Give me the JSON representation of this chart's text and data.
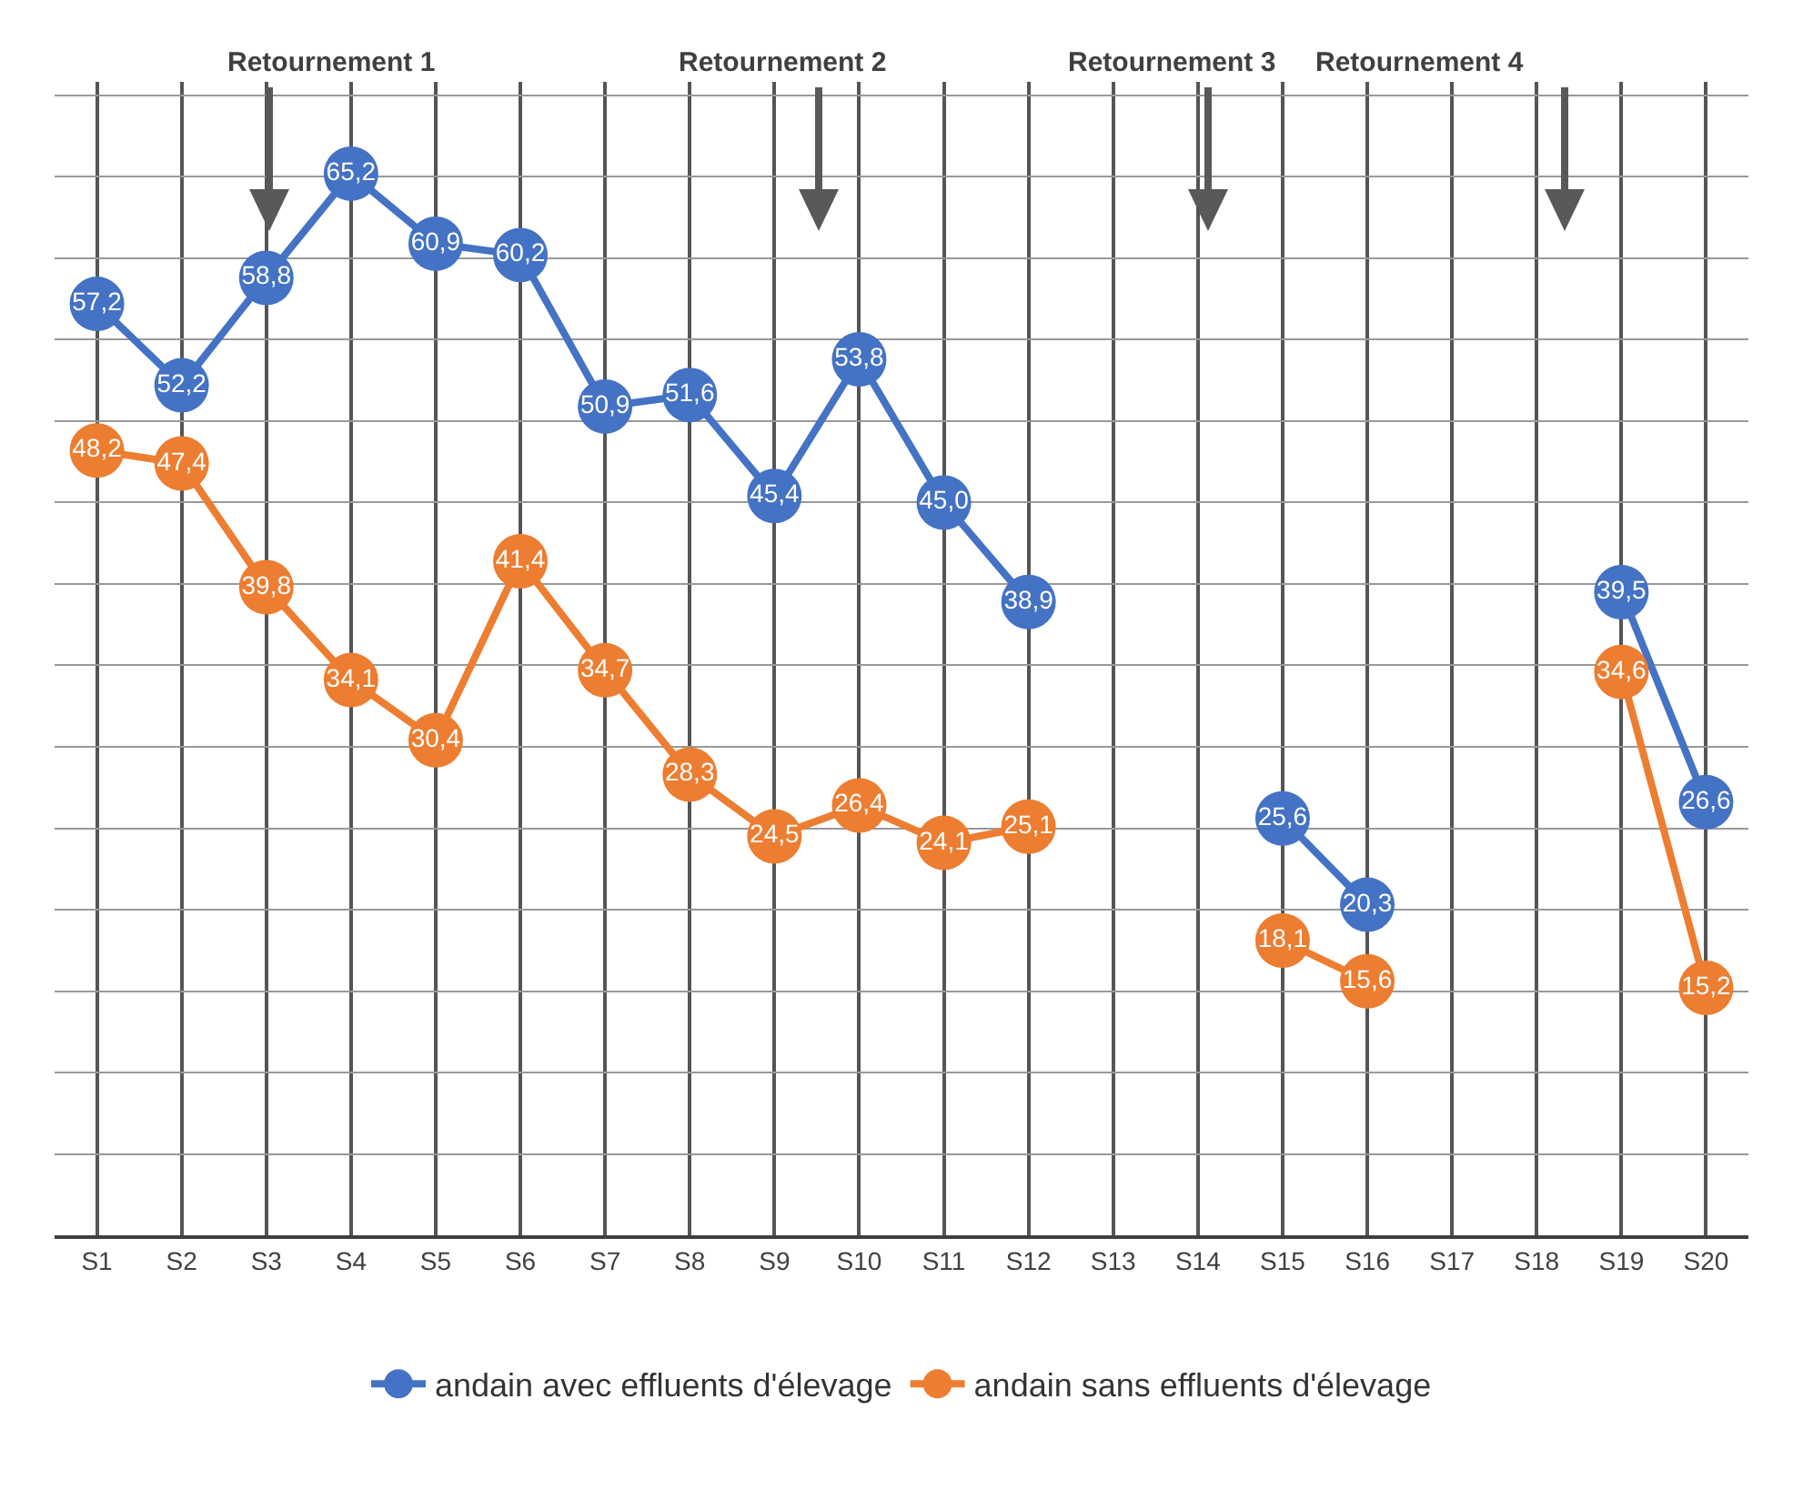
{
  "chart_data": {
    "type": "line",
    "categories": [
      "S1",
      "S2",
      "S3",
      "S4",
      "S5",
      "S6",
      "S7",
      "S8",
      "S9",
      "S10",
      "S11",
      "S12",
      "S13",
      "S14",
      "S15",
      "S16",
      "S17",
      "S18",
      "S19",
      "S20"
    ],
    "series": [
      {
        "name": "andain avec effluents d'élevage",
        "color": "#4472c4",
        "values": [
          57.2,
          52.2,
          58.8,
          65.2,
          60.9,
          60.2,
          50.9,
          51.6,
          45.4,
          53.8,
          45.0,
          38.9,
          null,
          null,
          25.6,
          20.3,
          null,
          null,
          39.5,
          26.6
        ],
        "value_labels": [
          "57,2",
          "52,2",
          "58,8",
          "65,2",
          "60,9",
          "60,2",
          "50,9",
          "51,6",
          "45,4",
          "53,8",
          "45,0",
          "38,9",
          null,
          null,
          "25,6",
          "20,3",
          null,
          null,
          "39,5",
          "26,6"
        ]
      },
      {
        "name": "andain sans effluents d'élevage",
        "color": "#ed7d31",
        "values": [
          48.2,
          47.4,
          39.8,
          34.1,
          30.4,
          41.4,
          34.7,
          28.3,
          24.5,
          26.4,
          24.1,
          25.1,
          null,
          null,
          18.1,
          15.6,
          null,
          null,
          34.6,
          15.2
        ],
        "value_labels": [
          "48,2",
          "47,4",
          "39,8",
          "34,1",
          "30,4",
          "41,4",
          "34,7",
          "28,3",
          "24,5",
          "26,4",
          "24,1",
          "25,1",
          null,
          null,
          "18,1",
          "15,6",
          null,
          null,
          "34,6",
          "15,2"
        ]
      }
    ],
    "annotations": [
      "Retournement 1",
      "Retournement 2",
      "Retournement 3",
      "Retournement 4"
    ],
    "tick_labels": "x",
    "grid": true,
    "legend": "bottom",
    "marker": "circle",
    "line_style": "solid"
  }
}
